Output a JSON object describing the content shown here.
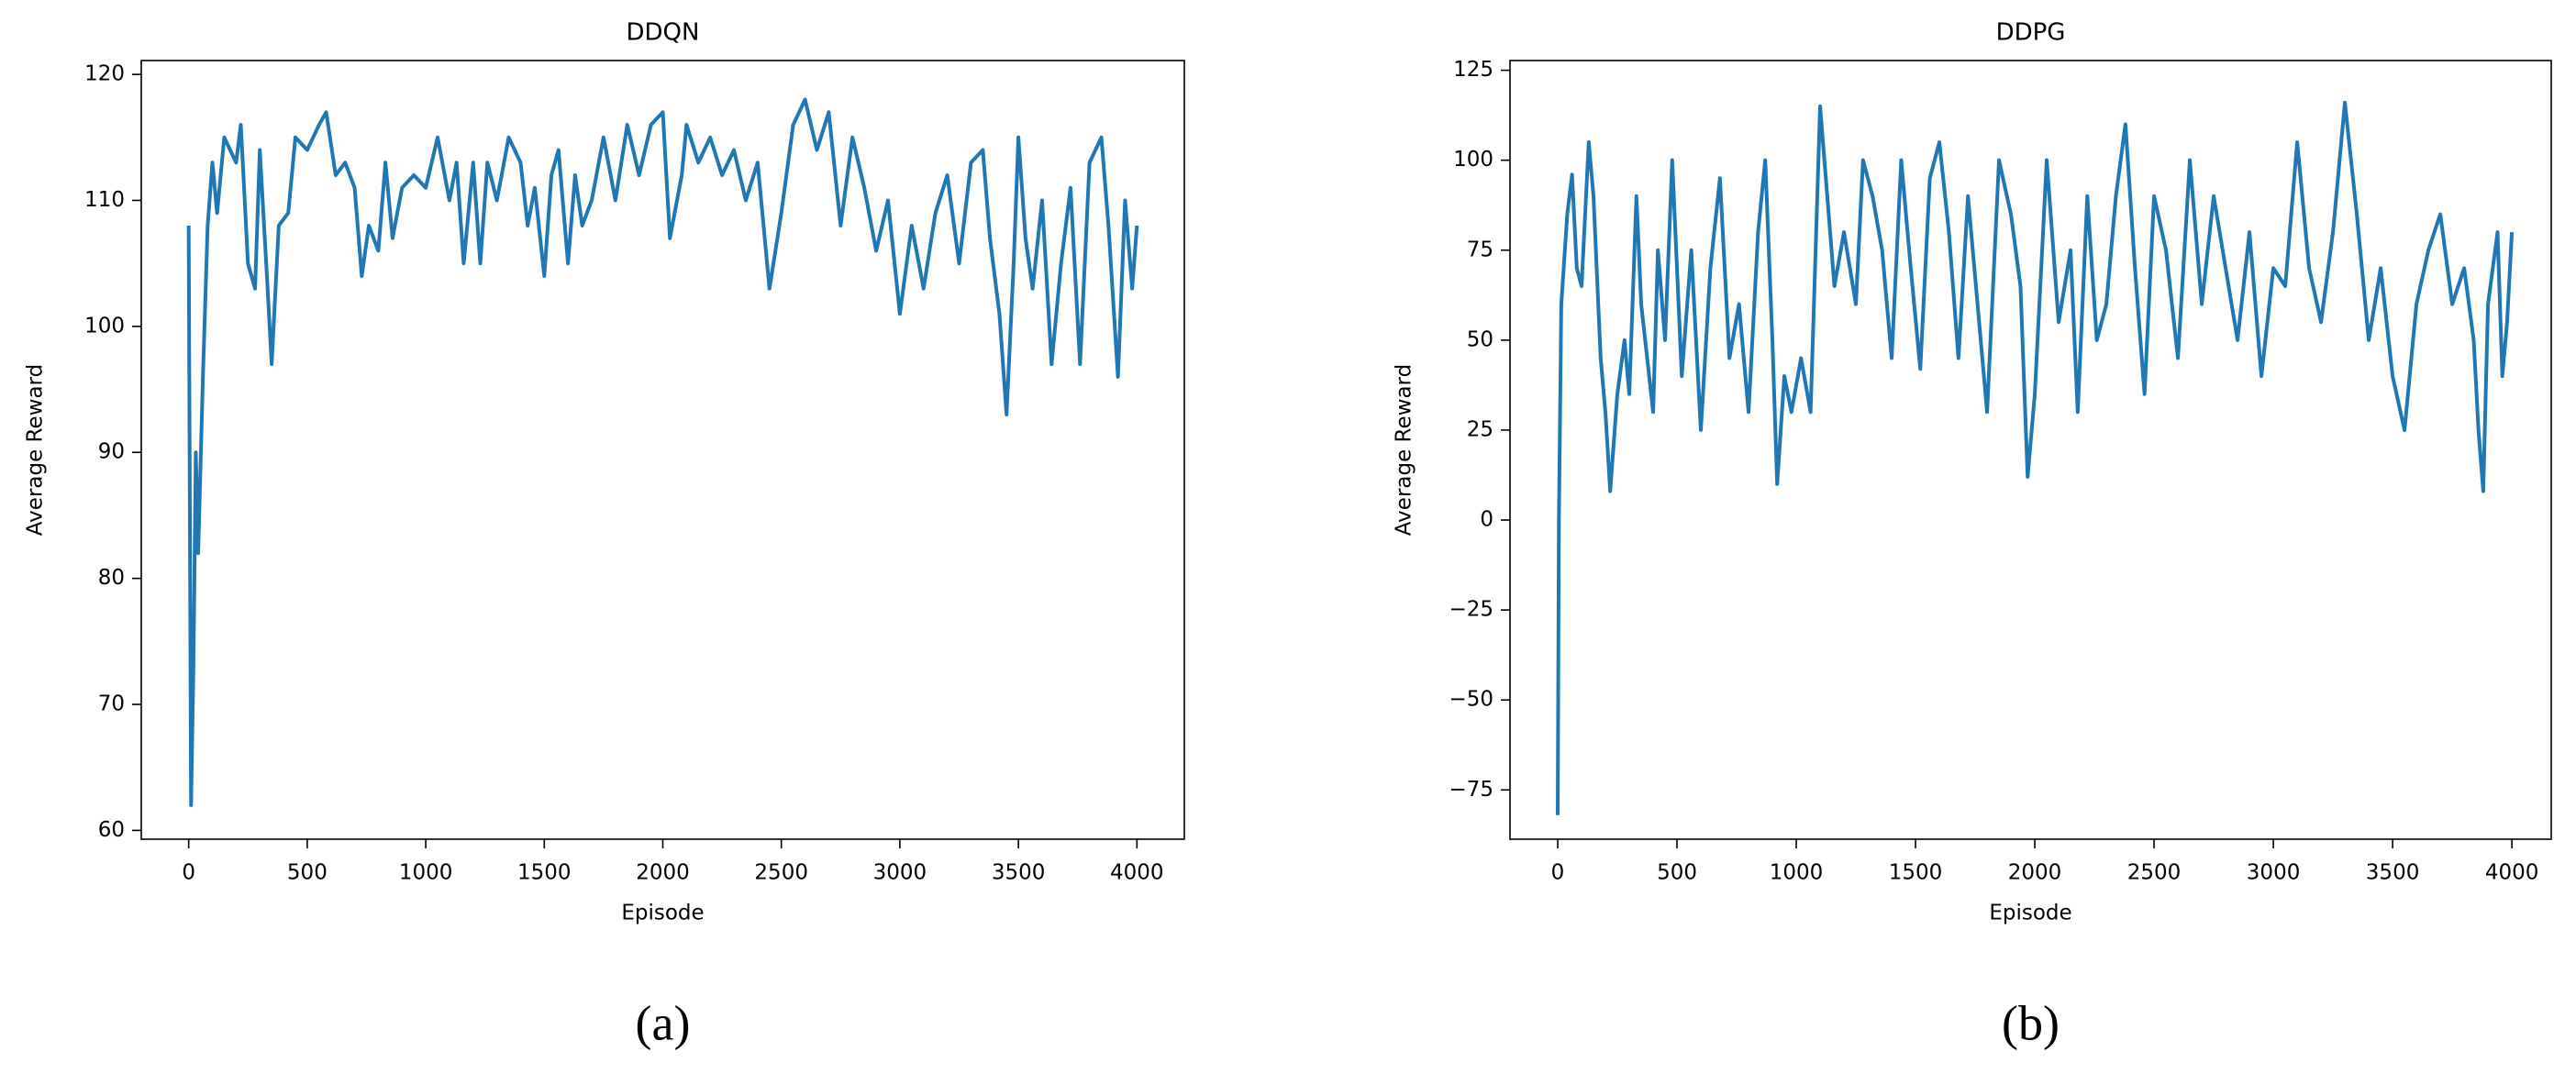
{
  "chart_data": [
    {
      "type": "line",
      "title": "DDQN",
      "x_label": "Episode",
      "y_label": "Average Reward",
      "caption": "(a)",
      "xlim": [
        -200,
        4200
      ],
      "ylim": [
        59.3,
        121.1
      ],
      "xticks": [
        0,
        500,
        1000,
        1500,
        2000,
        2500,
        3000,
        3500,
        4000
      ],
      "yticks": [
        60,
        70,
        80,
        90,
        100,
        110,
        120
      ],
      "x": [
        0,
        10,
        20,
        30,
        40,
        60,
        80,
        100,
        120,
        150,
        200,
        220,
        250,
        280,
        300,
        330,
        350,
        380,
        420,
        450,
        500,
        550,
        580,
        620,
        660,
        700,
        730,
        760,
        800,
        830,
        860,
        900,
        950,
        1000,
        1050,
        1100,
        1130,
        1160,
        1200,
        1230,
        1260,
        1300,
        1350,
        1400,
        1430,
        1460,
        1500,
        1530,
        1560,
        1600,
        1630,
        1660,
        1700,
        1750,
        1800,
        1850,
        1900,
        1950,
        2000,
        2030,
        2080,
        2100,
        2150,
        2200,
        2250,
        2300,
        2350,
        2400,
        2450,
        2500,
        2550,
        2600,
        2650,
        2700,
        2750,
        2800,
        2850,
        2900,
        2950,
        3000,
        3050,
        3100,
        3150,
        3200,
        3250,
        3300,
        3350,
        3380,
        3420,
        3450,
        3480,
        3500,
        3530,
        3560,
        3600,
        3640,
        3680,
        3720,
        3760,
        3800,
        3850,
        3880,
        3920,
        3950,
        3980,
        4000
      ],
      "series": [
        {
          "color": "#1f77b4",
          "values": [
            108,
            62,
            73,
            90,
            82,
            96,
            108,
            113,
            109,
            115,
            113,
            116,
            105,
            103,
            114,
            104,
            97,
            108,
            109,
            115,
            114,
            116,
            117,
            112,
            113,
            111,
            104,
            108,
            106,
            113,
            107,
            111,
            112,
            111,
            115,
            110,
            113,
            105,
            113,
            105,
            113,
            110,
            115,
            113,
            108,
            111,
            104,
            112,
            114,
            105,
            112,
            108,
            110,
            115,
            110,
            116,
            112,
            116,
            117,
            107,
            112,
            116,
            113,
            115,
            112,
            114,
            110,
            113,
            103,
            109,
            116,
            118,
            114,
            117,
            108,
            115,
            111,
            106,
            110,
            101,
            108,
            103,
            109,
            112,
            105,
            113,
            114,
            107,
            101,
            93,
            105,
            115,
            107,
            103,
            110,
            97,
            105,
            111,
            97,
            113,
            115,
            108,
            96,
            110,
            103,
            108
          ]
        }
      ]
    },
    {
      "type": "line",
      "title": "DDPG",
      "x_label": "Episode",
      "y_label": "Average Reward",
      "caption": "(b)",
      "xlim": [
        -200,
        4165
      ],
      "ylim": [
        -88.7,
        127.7
      ],
      "xticks": [
        0,
        500,
        1000,
        1500,
        2000,
        2500,
        3000,
        3500,
        4000
      ],
      "yticks": [
        {
          "value": -75,
          "label": "−75"
        },
        {
          "value": -50,
          "label": "−50"
        },
        {
          "value": -25,
          "label": "−25"
        },
        0,
        25,
        50,
        75,
        100,
        125
      ],
      "x": [
        0,
        5,
        15,
        40,
        60,
        80,
        100,
        130,
        150,
        180,
        200,
        220,
        250,
        280,
        300,
        330,
        350,
        400,
        420,
        450,
        480,
        520,
        560,
        600,
        640,
        680,
        720,
        760,
        800,
        840,
        870,
        900,
        920,
        950,
        980,
        1020,
        1060,
        1100,
        1130,
        1160,
        1200,
        1250,
        1280,
        1320,
        1360,
        1400,
        1440,
        1480,
        1520,
        1560,
        1600,
        1640,
        1680,
        1720,
        1760,
        1800,
        1850,
        1900,
        1940,
        1970,
        2000,
        2050,
        2100,
        2150,
        2180,
        2220,
        2260,
        2300,
        2340,
        2380,
        2420,
        2460,
        2500,
        2550,
        2600,
        2650,
        2700,
        2750,
        2800,
        2850,
        2900,
        2950,
        3000,
        3050,
        3100,
        3150,
        3200,
        3250,
        3300,
        3350,
        3400,
        3450,
        3500,
        3550,
        3600,
        3650,
        3700,
        3750,
        3800,
        3840,
        3860,
        3880,
        3900,
        3940,
        3960,
        3980,
        4000
      ],
      "series": [
        {
          "color": "#1f77b4",
          "values": [
            -82,
            0,
            60,
            85,
            96,
            70,
            65,
            105,
            90,
            45,
            30,
            8,
            35,
            50,
            35,
            90,
            60,
            30,
            75,
            50,
            100,
            40,
            75,
            25,
            70,
            95,
            45,
            60,
            30,
            80,
            100,
            50,
            10,
            40,
            30,
            45,
            30,
            115,
            90,
            65,
            80,
            60,
            100,
            90,
            75,
            45,
            100,
            70,
            42,
            95,
            105,
            80,
            45,
            90,
            60,
            30,
            100,
            85,
            65,
            12,
            35,
            100,
            55,
            75,
            30,
            90,
            50,
            60,
            90,
            110,
            70,
            35,
            90,
            75,
            45,
            100,
            60,
            90,
            70,
            50,
            80,
            40,
            70,
            65,
            105,
            70,
            55,
            80,
            116,
            85,
            50,
            70,
            40,
            25,
            60,
            75,
            85,
            60,
            70,
            50,
            25,
            8,
            60,
            80,
            40,
            55,
            80
          ]
        }
      ]
    }
  ]
}
